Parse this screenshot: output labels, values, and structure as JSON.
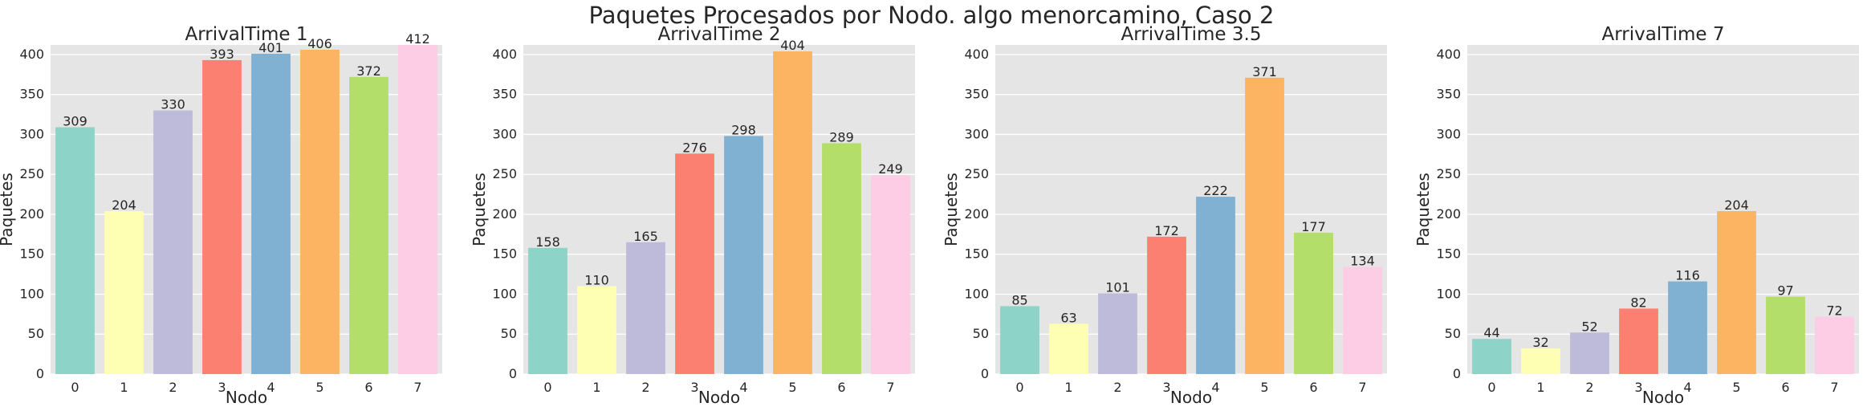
{
  "figure": {
    "suptitle": "Paquetes Procesados por Nodo. algo menorcamino, Caso 2"
  },
  "colors": [
    "#8dd3c7",
    "#ffffb3",
    "#bebada",
    "#fb8072",
    "#80b1d3",
    "#fdb462",
    "#b3de69",
    "#fccde5"
  ],
  "chart_data": [
    {
      "type": "bar",
      "title": "ArrivalTime 1",
      "xlabel": "Nodo",
      "ylabel": "Paquetes",
      "categories": [
        "0",
        "1",
        "2",
        "3",
        "4",
        "5",
        "6",
        "7"
      ],
      "values": [
        309,
        204,
        330,
        393,
        401,
        406,
        372,
        412
      ],
      "ylim": [
        0,
        412
      ],
      "yticks": [
        0,
        50,
        100,
        150,
        200,
        250,
        300,
        350,
        400
      ],
      "grid": true
    },
    {
      "type": "bar",
      "title": "ArrivalTime 2",
      "xlabel": "Nodo",
      "ylabel": "Paquetes",
      "categories": [
        "0",
        "1",
        "2",
        "3",
        "4",
        "5",
        "6",
        "7"
      ],
      "values": [
        158,
        110,
        165,
        276,
        298,
        404,
        289,
        249
      ],
      "ylim": [
        0,
        412
      ],
      "yticks": [
        0,
        50,
        100,
        150,
        200,
        250,
        300,
        350,
        400
      ],
      "grid": true
    },
    {
      "type": "bar",
      "title": "ArrivalTime 3.5",
      "xlabel": "Nodo",
      "ylabel": "Paquetes",
      "categories": [
        "0",
        "1",
        "2",
        "3",
        "4",
        "5",
        "6",
        "7"
      ],
      "values": [
        85,
        63,
        101,
        172,
        222,
        371,
        177,
        134
      ],
      "ylim": [
        0,
        412
      ],
      "yticks": [
        0,
        50,
        100,
        150,
        200,
        250,
        300,
        350,
        400
      ],
      "grid": true
    },
    {
      "type": "bar",
      "title": "ArrivalTime 7",
      "xlabel": "Nodo",
      "ylabel": "Paquetes",
      "categories": [
        "0",
        "1",
        "2",
        "3",
        "4",
        "5",
        "6",
        "7"
      ],
      "values": [
        44,
        32,
        52,
        82,
        116,
        204,
        97,
        72
      ],
      "ylim": [
        0,
        412
      ],
      "yticks": [
        0,
        50,
        100,
        150,
        200,
        250,
        300,
        350,
        400
      ],
      "grid": true
    }
  ]
}
